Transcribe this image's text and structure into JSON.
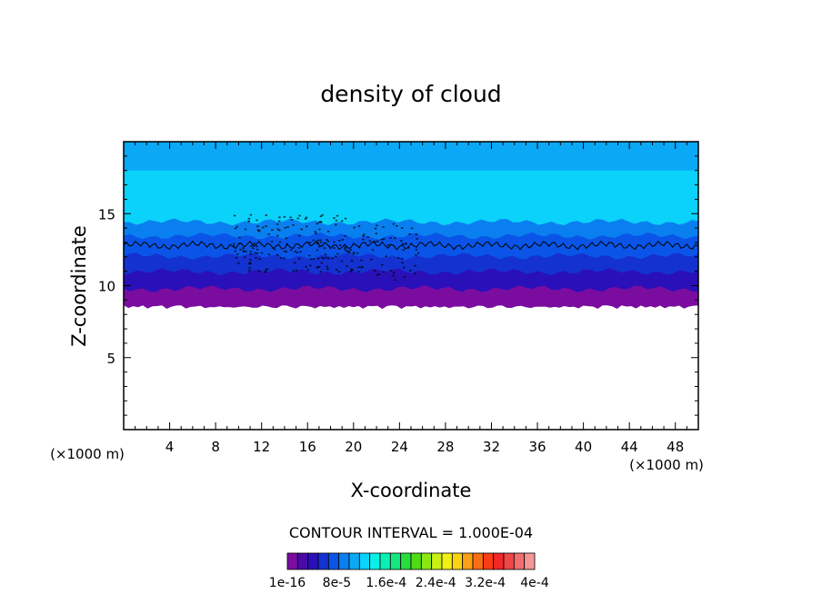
{
  "chart_data": {
    "type": "contour",
    "title": "density of cloud",
    "xlabel": "X-coordinate",
    "ylabel": "Z-coordinate",
    "x_unit": "(×1000 m)",
    "x_unit_right": "(×1000 m)",
    "xlim": [
      0,
      50
    ],
    "ylim": [
      0,
      20
    ],
    "x_ticks": [
      4,
      8,
      12,
      16,
      20,
      24,
      28,
      32,
      36,
      40,
      44,
      48
    ],
    "y_ticks": [
      5,
      10,
      15
    ],
    "contour_interval_text": "CONTOUR INTERVAL = 1.000E-04",
    "colorbar_labels": [
      "1e-16",
      "8e-5",
      "1.6e-4",
      "2.4e-4",
      "3.2e-4",
      "4e-4"
    ],
    "colorbar_colors": [
      "#7a0da0",
      "#4b0aa8",
      "#2a10b8",
      "#1432d0",
      "#0a55e8",
      "#0a80f0",
      "#0aa8f5",
      "#0ad2fa",
      "#0af0e6",
      "#0af0b4",
      "#14e680",
      "#28dc3c",
      "#50dc14",
      "#8ce614",
      "#c8f014",
      "#f0f014",
      "#fad214",
      "#faa014",
      "#fa6e14",
      "#fa3c14",
      "#f02828",
      "#f04646",
      "#f06e6e",
      "#f59696"
    ],
    "cloud_base_z": 8.7,
    "cloud_top_z": 19.5,
    "contour_line_z": 12.8,
    "layer_colors": [
      "#7a0da0",
      "#2a10b8",
      "#1432d0",
      "#0a55e8",
      "#0a80f0",
      "#0aa8f5",
      "#0ad2fa"
    ]
  }
}
